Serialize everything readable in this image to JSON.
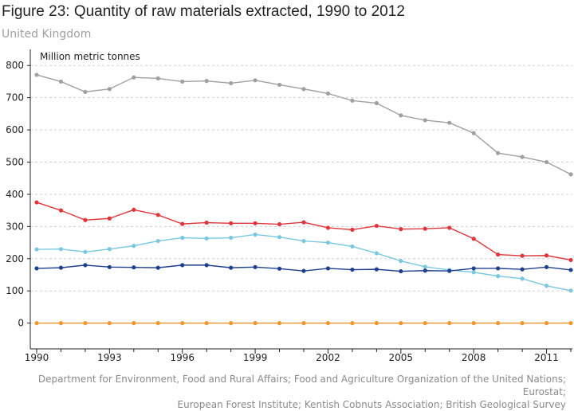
{
  "header": {
    "title": "Figure 23: Quantity of raw materials extracted, 1990 to 2012",
    "subtitle": "United Kingdom"
  },
  "source": {
    "line1": "Department for Environment, Food and Rural Affairs; Food and Agriculture Organization of the United Nations; Eurostat;",
    "line2": "European Forest Institute; Kentish Cobnuts Association; British Geological Survey"
  },
  "chart_data": {
    "type": "line",
    "title": "Figure 23: Quantity of raw materials extracted, 1990 to 2012",
    "subtitle": "United Kingdom",
    "unit_label": "Million metric tonnes",
    "xlabel": "",
    "ylabel": "",
    "x": [
      1990,
      1991,
      1992,
      1993,
      1994,
      1995,
      1996,
      1997,
      1998,
      1999,
      2000,
      2001,
      2002,
      2003,
      2004,
      2005,
      2006,
      2007,
      2008,
      2009,
      2010,
      2011,
      2012
    ],
    "x_ticks": [
      1990,
      1993,
      1996,
      1999,
      2002,
      2005,
      2008,
      2011
    ],
    "xlim": [
      1990,
      2012
    ],
    "ylim": [
      -80,
      850
    ],
    "y_ticks": [
      0,
      100,
      200,
      300,
      400,
      500,
      600,
      700,
      800
    ],
    "grid": true,
    "legend": "none",
    "series": [
      {
        "color": "#a0a0a0",
        "values": [
          771,
          750,
          718,
          727,
          763,
          760,
          750,
          752,
          745,
          754,
          740,
          727,
          713,
          691,
          683,
          645,
          630,
          622,
          590,
          528,
          516,
          500,
          462
        ]
      },
      {
        "color": "#e0363b",
        "values": [
          375,
          350,
          320,
          325,
          352,
          336,
          308,
          312,
          310,
          310,
          307,
          313,
          296,
          290,
          302,
          292,
          293,
          296,
          262,
          213,
          209,
          210,
          196
        ]
      },
      {
        "color": "#79c8e0",
        "values": [
          229,
          230,
          221,
          230,
          240,
          255,
          265,
          263,
          265,
          275,
          267,
          255,
          250,
          238,
          217,
          193,
          175,
          165,
          158,
          146,
          138,
          116,
          101
        ]
      },
      {
        "color": "#1f3f8f",
        "values": [
          170,
          172,
          180,
          174,
          173,
          172,
          180,
          180,
          172,
          174,
          169,
          162,
          170,
          166,
          167,
          161,
          163,
          162,
          170,
          170,
          167,
          174,
          165
        ]
      },
      {
        "color": "#f0962d",
        "values": [
          0,
          0,
          0,
          0,
          0,
          0,
          0,
          0,
          0,
          0,
          0,
          0,
          0,
          0,
          0,
          0,
          0,
          0,
          0,
          0,
          0,
          0,
          0
        ]
      }
    ]
  }
}
